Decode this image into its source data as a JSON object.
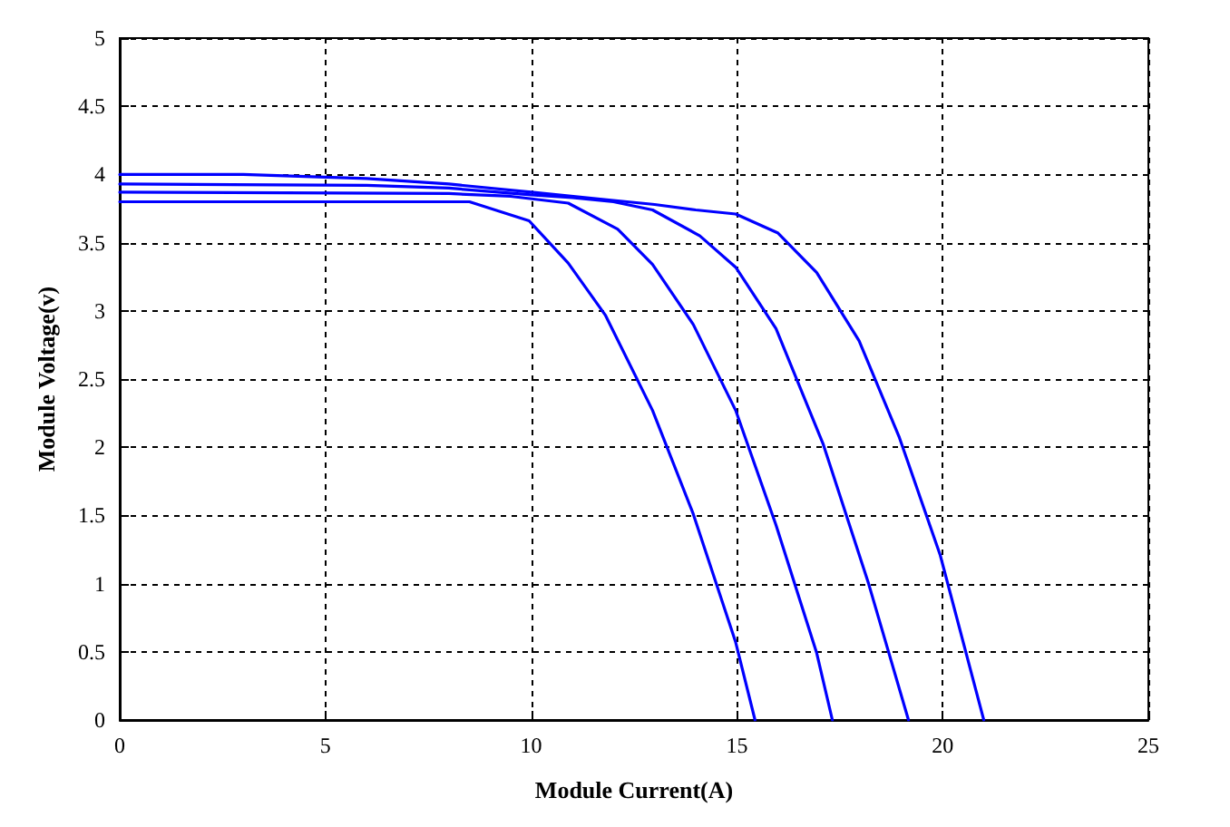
{
  "chart_data": {
    "type": "line",
    "xlabel": "Module Current(A)",
    "ylabel": "Module Voltage(v)",
    "xlim": [
      0,
      25
    ],
    "ylim": [
      0,
      5
    ],
    "xticks": [
      0,
      5,
      10,
      15,
      20,
      25
    ],
    "yticks": [
      0,
      0.5,
      1,
      1.5,
      2,
      2.5,
      3,
      3.5,
      4,
      4.5,
      5
    ],
    "grid": true,
    "marker": "none",
    "line_style": "solid",
    "series": [
      {
        "color": "#0000ff",
        "x": [
          0,
          8.5,
          9.95,
          10.9,
          11.8,
          12.95,
          13.94,
          14.97,
          15.44
        ],
        "values": [
          3.8,
          3.8,
          3.66,
          3.35,
          2.97,
          2.27,
          1.51,
          0.57,
          0
        ]
      },
      {
        "color": "#0000ff",
        "x": [
          0,
          8,
          9.5,
          10.9,
          12.1,
          12.95,
          13.94,
          14.97,
          15.95,
          16.94,
          17.32
        ],
        "values": [
          3.87,
          3.86,
          3.84,
          3.79,
          3.6,
          3.34,
          2.9,
          2.27,
          1.43,
          0.49,
          0
        ]
      },
      {
        "color": "#0000ff",
        "x": [
          0,
          6,
          8,
          10,
          11,
          12,
          12.95,
          14.1,
          14.97,
          15.95,
          17.1,
          18.2,
          19.17
        ],
        "values": [
          3.93,
          3.92,
          3.9,
          3.85,
          3.83,
          3.8,
          3.74,
          3.55,
          3.32,
          2.87,
          2.02,
          1.0,
          0
        ]
      },
      {
        "color": "#0000ff",
        "x": [
          0,
          3,
          6,
          8,
          10,
          12,
          13,
          14,
          14.97,
          16.0,
          16.94,
          17.97,
          18.95,
          19.94,
          21.0
        ],
        "values": [
          4.0,
          4.0,
          3.97,
          3.93,
          3.87,
          3.81,
          3.78,
          3.74,
          3.71,
          3.57,
          3.28,
          2.78,
          2.07,
          1.21,
          0
        ]
      }
    ]
  }
}
